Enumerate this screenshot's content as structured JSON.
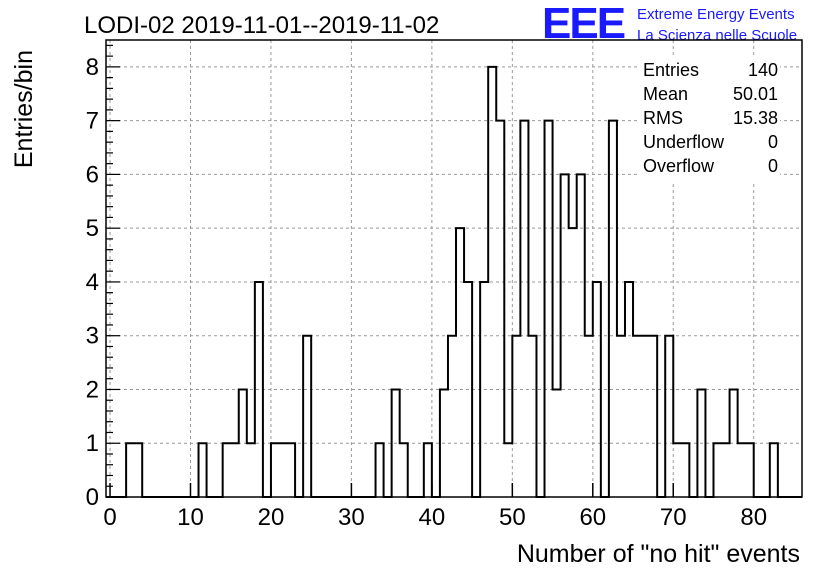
{
  "title": "LODI-02 2019-11-01--2019-11-02",
  "logo": {
    "mark": "EEE",
    "line1": "Extreme Energy Events",
    "line2": "La Scienza nelle Scuole",
    "color": "#1a1aff"
  },
  "stats": {
    "rows": [
      {
        "label": "Entries",
        "value": "140"
      },
      {
        "label": "Mean",
        "value": "50.01"
      },
      {
        "label": "RMS",
        "value": "15.38"
      },
      {
        "label": "Underflow",
        "value": "0"
      },
      {
        "label": "Overflow",
        "value": "0"
      }
    ]
  },
  "chart_data": {
    "type": "histogram",
    "title": "LODI-02 2019-11-01--2019-11-02",
    "xlabel": "Number of \"no hit\" events",
    "ylabel": "Entries/bin",
    "xlim": [
      -0.5,
      86
    ],
    "ylim": [
      0,
      8.5
    ],
    "bin_width": 1,
    "x_ticks": [
      0,
      10,
      20,
      30,
      40,
      50,
      60,
      70,
      80
    ],
    "y_ticks": [
      0,
      1,
      2,
      3,
      4,
      5,
      6,
      7,
      8
    ],
    "grid": true,
    "line_color": "#000000",
    "bins": [
      {
        "x": 2.5,
        "y": 1
      },
      {
        "x": 3.5,
        "y": 1
      },
      {
        "x": 11.5,
        "y": 1
      },
      {
        "x": 14.5,
        "y": 1
      },
      {
        "x": 15.5,
        "y": 1
      },
      {
        "x": 16.5,
        "y": 2
      },
      {
        "x": 17.5,
        "y": 1
      },
      {
        "x": 18.5,
        "y": 4
      },
      {
        "x": 20.5,
        "y": 1
      },
      {
        "x": 21.5,
        "y": 1
      },
      {
        "x": 22.5,
        "y": 1
      },
      {
        "x": 24.5,
        "y": 3
      },
      {
        "x": 33.5,
        "y": 1
      },
      {
        "x": 35.5,
        "y": 2
      },
      {
        "x": 36.5,
        "y": 1
      },
      {
        "x": 39.5,
        "y": 1
      },
      {
        "x": 41.5,
        "y": 2
      },
      {
        "x": 42.5,
        "y": 3
      },
      {
        "x": 43.5,
        "y": 5
      },
      {
        "x": 44.5,
        "y": 4
      },
      {
        "x": 46.5,
        "y": 4
      },
      {
        "x": 47.5,
        "y": 8
      },
      {
        "x": 48.5,
        "y": 7
      },
      {
        "x": 49.5,
        "y": 1
      },
      {
        "x": 50.5,
        "y": 3
      },
      {
        "x": 51.5,
        "y": 7
      },
      {
        "x": 52.5,
        "y": 3
      },
      {
        "x": 54.5,
        "y": 7
      },
      {
        "x": 55.5,
        "y": 2
      },
      {
        "x": 56.5,
        "y": 6
      },
      {
        "x": 57.5,
        "y": 5
      },
      {
        "x": 58.5,
        "y": 6
      },
      {
        "x": 59.5,
        "y": 3
      },
      {
        "x": 60.5,
        "y": 4
      },
      {
        "x": 62.5,
        "y": 7
      },
      {
        "x": 63.5,
        "y": 3
      },
      {
        "x": 64.5,
        "y": 4
      },
      {
        "x": 65.5,
        "y": 3
      },
      {
        "x": 66.5,
        "y": 3
      },
      {
        "x": 67.5,
        "y": 3
      },
      {
        "x": 69.5,
        "y": 3
      },
      {
        "x": 70.5,
        "y": 1
      },
      {
        "x": 71.5,
        "y": 1
      },
      {
        "x": 73.5,
        "y": 2
      },
      {
        "x": 75.5,
        "y": 1
      },
      {
        "x": 76.5,
        "y": 1
      },
      {
        "x": 77.5,
        "y": 2
      },
      {
        "x": 78.5,
        "y": 1
      },
      {
        "x": 79.5,
        "y": 1
      },
      {
        "x": 82.5,
        "y": 1
      }
    ]
  }
}
